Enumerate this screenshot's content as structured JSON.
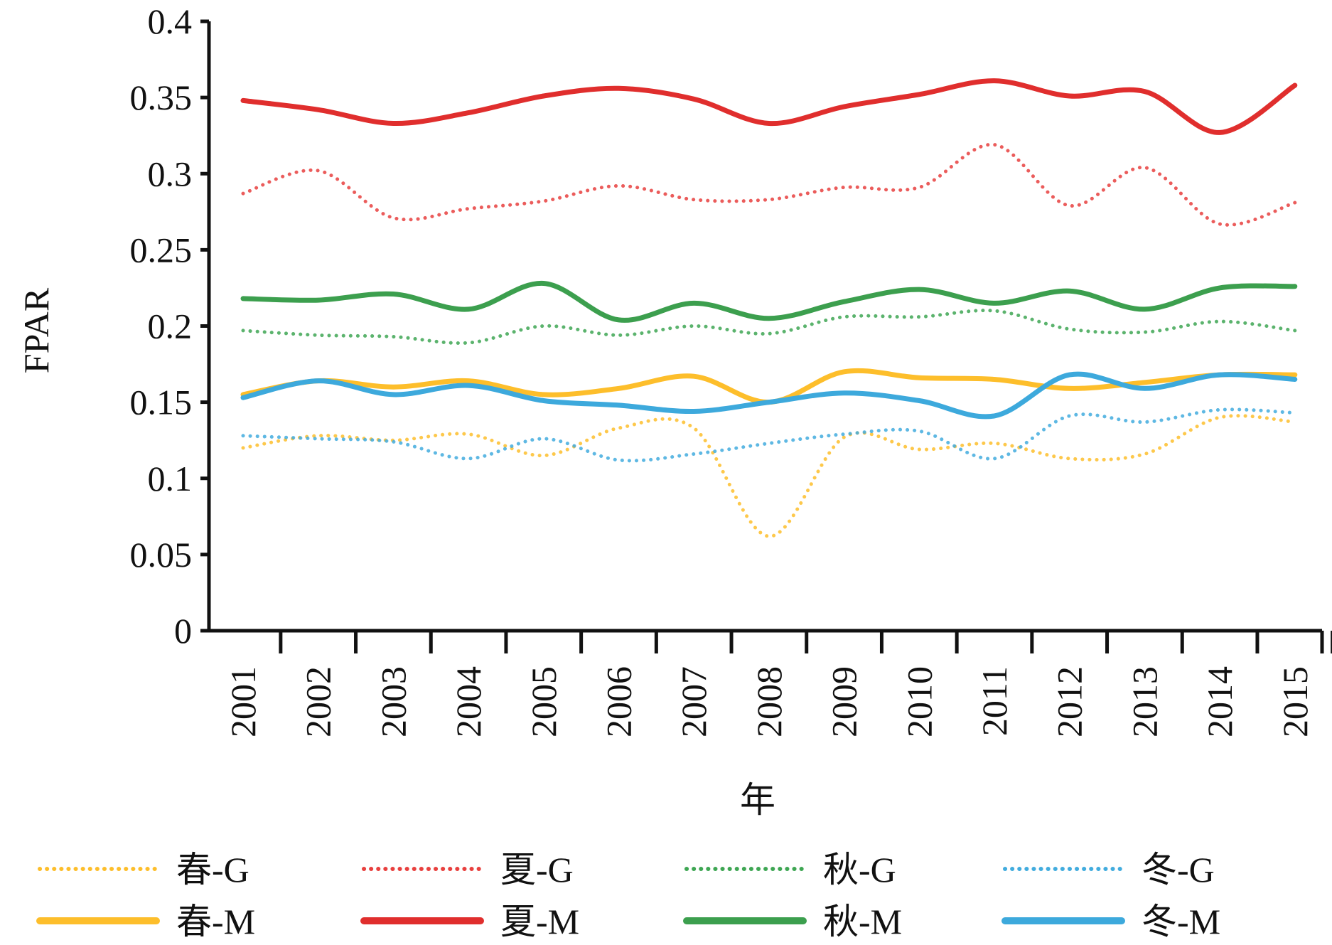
{
  "chart_data": {
    "type": "line",
    "title": "",
    "xlabel": "年",
    "ylabel": "FPAR",
    "ylim": [
      0,
      0.4
    ],
    "y_ticks": [
      "0",
      "0.05",
      "0.1",
      "0.15",
      "0.2",
      "0.25",
      "0.3",
      "0.35",
      "0.4"
    ],
    "grid": false,
    "legend_position": "bottom",
    "categories": [
      "2001",
      "2002",
      "2003",
      "2004",
      "2005",
      "2006",
      "2007",
      "2008",
      "2009",
      "2010",
      "2011",
      "2012",
      "2013",
      "2014",
      "2015"
    ],
    "series": [
      {
        "name": "春-G",
        "color": "#FDBE2B",
        "style": "dotted",
        "values": [
          0.12,
          0.128,
          0.125,
          0.129,
          0.115,
          0.133,
          0.133,
          0.062,
          0.127,
          0.119,
          0.123,
          0.113,
          0.116,
          0.14,
          0.137
        ]
      },
      {
        "name": "夏-G",
        "color": "#E8403E",
        "style": "dotted",
        "values": [
          0.287,
          0.302,
          0.271,
          0.277,
          0.282,
          0.292,
          0.283,
          0.283,
          0.291,
          0.291,
          0.319,
          0.279,
          0.304,
          0.267,
          0.281
        ]
      },
      {
        "name": "秋-G",
        "color": "#3EA653",
        "style": "dotted",
        "values": [
          0.197,
          0.194,
          0.193,
          0.189,
          0.2,
          0.194,
          0.2,
          0.195,
          0.206,
          0.206,
          0.21,
          0.198,
          0.196,
          0.203,
          0.197
        ]
      },
      {
        "name": "冬-G",
        "color": "#42ACDE",
        "style": "dotted",
        "values": [
          0.128,
          0.126,
          0.124,
          0.113,
          0.126,
          0.112,
          0.116,
          0.123,
          0.129,
          0.131,
          0.113,
          0.141,
          0.137,
          0.145,
          0.143
        ]
      },
      {
        "name": "春-M",
        "color": "#FDBE2B",
        "style": "solid",
        "values": [
          0.155,
          0.164,
          0.16,
          0.164,
          0.155,
          0.159,
          0.167,
          0.15,
          0.17,
          0.166,
          0.165,
          0.159,
          0.163,
          0.168,
          0.168
        ]
      },
      {
        "name": "夏-M",
        "color": "#E02E2D",
        "style": "solid",
        "values": [
          0.348,
          0.342,
          0.333,
          0.34,
          0.351,
          0.356,
          0.349,
          0.333,
          0.344,
          0.352,
          0.361,
          0.351,
          0.354,
          0.327,
          0.358
        ]
      },
      {
        "name": "秋-M",
        "color": "#3C9F4E",
        "style": "solid",
        "values": [
          0.218,
          0.217,
          0.221,
          0.211,
          0.228,
          0.204,
          0.215,
          0.205,
          0.216,
          0.224,
          0.215,
          0.223,
          0.211,
          0.225,
          0.226
        ]
      },
      {
        "name": "冬-M",
        "color": "#3DA9DC",
        "style": "solid",
        "values": [
          0.153,
          0.164,
          0.155,
          0.161,
          0.151,
          0.148,
          0.144,
          0.15,
          0.156,
          0.151,
          0.141,
          0.168,
          0.159,
          0.168,
          0.165
        ]
      }
    ]
  }
}
